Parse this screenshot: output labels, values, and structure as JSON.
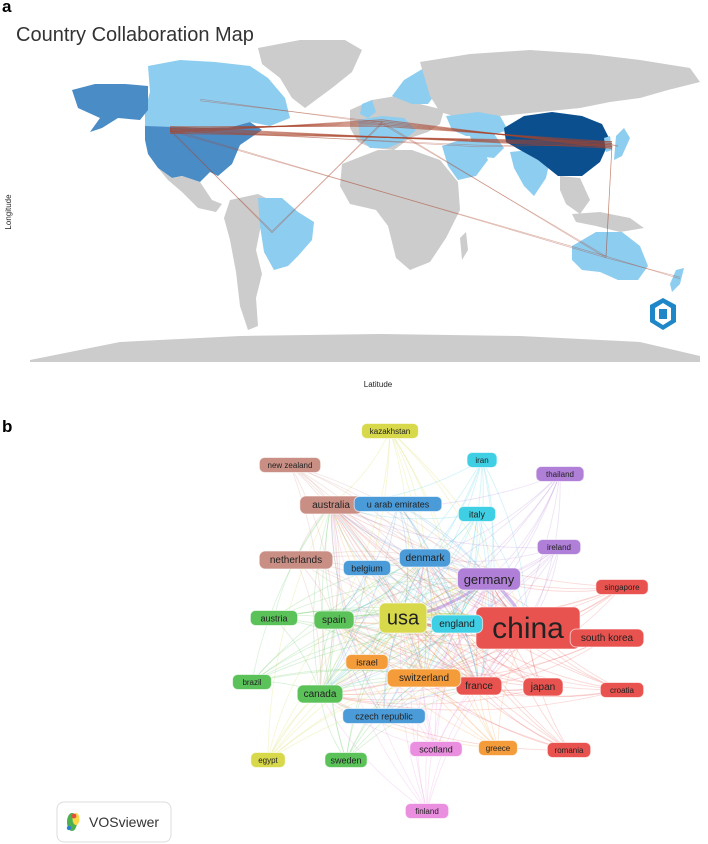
{
  "panel_a": {
    "letter": "a",
    "title": "Country Collaboration Map",
    "xlabel": "Latitude",
    "ylabel": "Longitude"
  },
  "panel_b": {
    "letter": "b",
    "logo_text": "VOSviewer"
  },
  "colors": {
    "no_collab": "#cccccc",
    "low": "#8dcdef",
    "mid": "#4a8cc6",
    "high": "#0b4f8f",
    "link": "#a9432a",
    "cl_red": "#e8534f",
    "cl_green": "#5bc25a",
    "cl_blue": "#4a9bd8",
    "cl_yellow": "#d7d84a",
    "cl_purple": "#b07fd8",
    "cl_cyan": "#3ecfe4",
    "cl_orange": "#f59c3a",
    "cl_brown": "#c98f85",
    "cl_pink": "#ea8ee0"
  },
  "chart_data": [
    {
      "type": "choropleth_map",
      "title": "Country Collaboration Map",
      "xlabel": "Latitude",
      "ylabel": "Longitude",
      "highlighted_countries": [
        {
          "country": "China",
          "level": "high"
        },
        {
          "country": "USA",
          "level": "mid"
        },
        {
          "country": "Canada",
          "level": "low"
        },
        {
          "country": "Brazil",
          "level": "low"
        },
        {
          "country": "Australia",
          "level": "low"
        },
        {
          "country": "India",
          "level": "low"
        },
        {
          "country": "Japan",
          "level": "low"
        },
        {
          "country": "Korea",
          "level": "low"
        },
        {
          "country": "Germany",
          "level": "low"
        },
        {
          "country": "United Kingdom",
          "level": "low"
        },
        {
          "country": "France",
          "level": "low"
        },
        {
          "country": "Italy",
          "level": "low"
        },
        {
          "country": "Spain",
          "level": "low"
        },
        {
          "country": "Scandinavia",
          "level": "low"
        },
        {
          "country": "Iran",
          "level": "low"
        },
        {
          "country": "Saudi Arabia",
          "level": "low"
        },
        {
          "country": "Kazakhstan",
          "level": "low"
        },
        {
          "country": "New Zealand",
          "level": "low"
        }
      ],
      "links": [
        [
          "USA",
          "China"
        ],
        [
          "USA",
          "Europe"
        ],
        [
          "China",
          "Europe"
        ],
        [
          "USA",
          "Brazil"
        ],
        [
          "China",
          "Australia"
        ],
        [
          "USA",
          "Australia"
        ],
        [
          "Brazil",
          "Europe"
        ],
        [
          "Europe",
          "Australia"
        ],
        [
          "China",
          "Japan"
        ],
        [
          "Australia",
          "New Zealand"
        ],
        [
          "Canada",
          "Europe"
        ],
        [
          "USA",
          "Iran"
        ],
        [
          "China",
          "Iran"
        ]
      ]
    },
    {
      "type": "network",
      "nodes": [
        {
          "label": "china",
          "cluster": "red",
          "weight": 10
        },
        {
          "label": "usa",
          "cluster": "yellow",
          "weight": 7
        },
        {
          "label": "germany",
          "cluster": "purple",
          "weight": 4
        },
        {
          "label": "england",
          "cluster": "cyan",
          "weight": 3
        },
        {
          "label": "south korea",
          "cluster": "red",
          "weight": 3
        },
        {
          "label": "japan",
          "cluster": "red",
          "weight": 3
        },
        {
          "label": "france",
          "cluster": "red",
          "weight": 3
        },
        {
          "label": "switzerland",
          "cluster": "orange",
          "weight": 3
        },
        {
          "label": "canada",
          "cluster": "green",
          "weight": 3
        },
        {
          "label": "spain",
          "cluster": "green",
          "weight": 3
        },
        {
          "label": "australia",
          "cluster": "brown",
          "weight": 3
        },
        {
          "label": "netherlands",
          "cluster": "brown",
          "weight": 3
        },
        {
          "label": "denmark",
          "cluster": "blue",
          "weight": 3
        },
        {
          "label": "italy",
          "cluster": "cyan",
          "weight": 2
        },
        {
          "label": "belgium",
          "cluster": "blue",
          "weight": 2
        },
        {
          "label": "austria",
          "cluster": "green",
          "weight": 2
        },
        {
          "label": "israel",
          "cluster": "orange",
          "weight": 2
        },
        {
          "label": "scotland",
          "cluster": "pink",
          "weight": 2
        },
        {
          "label": "sweden",
          "cluster": "green",
          "weight": 2
        },
        {
          "label": "czech republic",
          "cluster": "blue",
          "weight": 2
        },
        {
          "label": "u arab emirates",
          "cluster": "blue",
          "weight": 2
        },
        {
          "label": "new zealand",
          "cluster": "brown",
          "weight": 1
        },
        {
          "label": "kazakhstan",
          "cluster": "yellow",
          "weight": 1
        },
        {
          "label": "iran",
          "cluster": "cyan",
          "weight": 1
        },
        {
          "label": "thailand",
          "cluster": "purple",
          "weight": 1
        },
        {
          "label": "ireland",
          "cluster": "purple",
          "weight": 1
        },
        {
          "label": "singapore",
          "cluster": "red",
          "weight": 1
        },
        {
          "label": "croatia",
          "cluster": "red",
          "weight": 1
        },
        {
          "label": "romania",
          "cluster": "red",
          "weight": 1
        },
        {
          "label": "greece",
          "cluster": "orange",
          "weight": 1
        },
        {
          "label": "finland",
          "cluster": "pink",
          "weight": 1
        },
        {
          "label": "egypt",
          "cluster": "yellow",
          "weight": 1
        },
        {
          "label": "brazil",
          "cluster": "green",
          "weight": 1
        }
      ]
    }
  ]
}
